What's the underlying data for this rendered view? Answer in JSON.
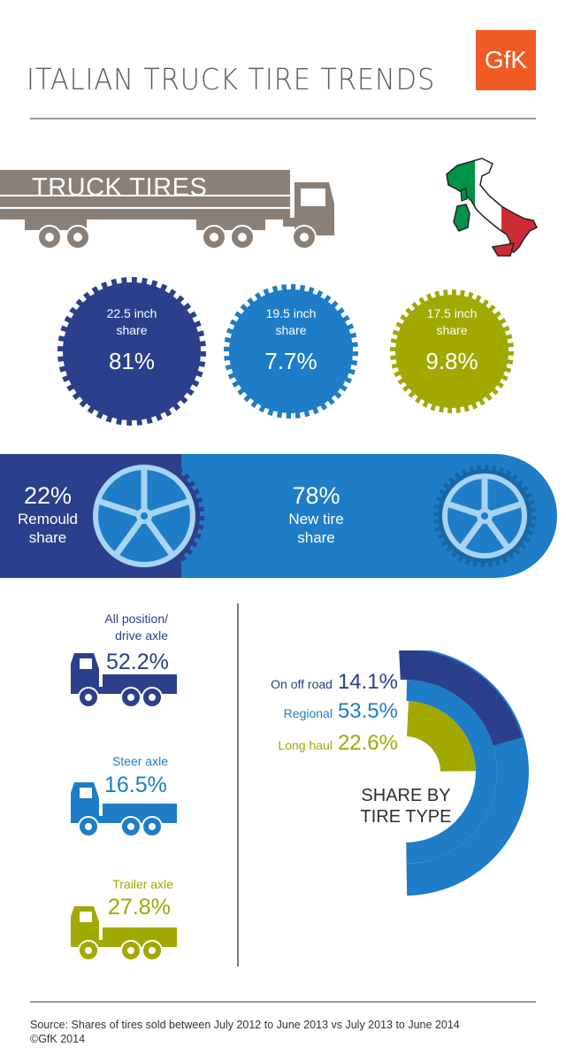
{
  "header": {
    "title": "ITALIAN TRUCK TIRE TRENDS",
    "logo_text": "GfK"
  },
  "truck_section": {
    "label": "TRUCK TIRES"
  },
  "rim_sizes": [
    {
      "label_line1": "22.5 inch",
      "label_line2": "share",
      "value": "81%",
      "color": "#2b3f8c"
    },
    {
      "label_line1": "19.5 inch",
      "label_line2": "share",
      "value": "7.7%",
      "color": "#1e7dc6"
    },
    {
      "label_line1": "17.5 inch",
      "label_line2": "share",
      "value": "9.8%",
      "color": "#a1a800"
    }
  ],
  "band": {
    "remould_value": "22%",
    "remould_line1": "Remould",
    "remould_line2": "share",
    "new_value": "78%",
    "new_line1": "New tire",
    "new_line2": "share"
  },
  "positions": [
    {
      "label_line1": "All position/",
      "label_line2": "drive axle",
      "value": "52.2%",
      "color": "#2b3f8c"
    },
    {
      "label_line1": "Steer axle",
      "label_line2": "",
      "value": "16.5%",
      "color": "#1e7dc6"
    },
    {
      "label_line1": "Trailer axle",
      "label_line2": "",
      "value": "27.8%",
      "color": "#a1a800"
    }
  ],
  "tire_types": {
    "title_line1": "SHARE BY",
    "title_line2": "TIRE TYPE",
    "items": [
      {
        "label": "On off road",
        "value": "14.1%",
        "color": "#2b3f8c"
      },
      {
        "label": "Regional",
        "value": "53.5%",
        "color": "#1e7dc6"
      },
      {
        "label": "Long haul",
        "value": "22.6%",
        "color": "#a1a800"
      }
    ]
  },
  "chart_data": [
    {
      "type": "pie",
      "title": "",
      "categories": [
        "22.5 inch share",
        "19.5 inch share",
        "17.5 inch share"
      ],
      "values": [
        81,
        7.7,
        9.8
      ],
      "unit": "%"
    },
    {
      "type": "pie",
      "title": "",
      "categories": [
        "Remould share",
        "New tire share"
      ],
      "values": [
        22,
        78
      ],
      "unit": "%"
    },
    {
      "type": "bar",
      "title": "",
      "categories": [
        "All position/drive axle",
        "Steer axle",
        "Trailer axle"
      ],
      "values": [
        52.2,
        16.5,
        27.8
      ],
      "unit": "%"
    },
    {
      "type": "pie",
      "title": "SHARE BY TIRE TYPE",
      "categories": [
        "On off road",
        "Regional",
        "Long haul"
      ],
      "values": [
        14.1,
        53.5,
        22.6
      ],
      "unit": "%"
    }
  ],
  "footer": {
    "source": "Source: Shares of tires sold between July 2012 to June 2013 vs July 2013 to June 2014",
    "copyright": "©GfK 2014"
  }
}
